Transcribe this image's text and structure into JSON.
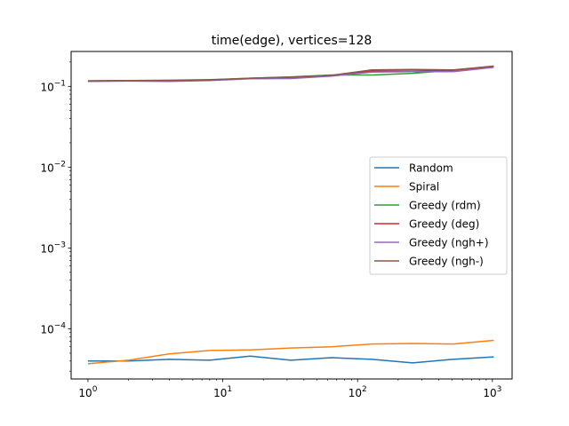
{
  "chart_data": {
    "type": "line",
    "title": "time(edge), vertices=128",
    "xlabel": "",
    "ylabel": "",
    "xscale": "log",
    "yscale": "log",
    "xlim": [
      0.75,
      1400
    ],
    "ylim": [
      2.4e-05,
      0.27
    ],
    "grid": false,
    "legend_position": "center-right",
    "x": [
      1,
      2,
      4,
      8,
      16,
      32,
      64,
      128,
      256,
      512,
      1024
    ],
    "x_ticks": [
      {
        "value": 1,
        "base": "10",
        "exp": "0"
      },
      {
        "value": 10,
        "base": "10",
        "exp": "1"
      },
      {
        "value": 100,
        "base": "10",
        "exp": "2"
      },
      {
        "value": 1000,
        "base": "10",
        "exp": "3"
      }
    ],
    "y_ticks": [
      {
        "value": 0.0001,
        "base": "10",
        "exp": "−4"
      },
      {
        "value": 0.001,
        "base": "10",
        "exp": "−3"
      },
      {
        "value": 0.01,
        "base": "10",
        "exp": "−2"
      },
      {
        "value": 0.1,
        "base": "10",
        "exp": "−1"
      }
    ],
    "series": [
      {
        "name": "Random",
        "color": "#1f77b4",
        "values": [
          4e-05,
          4e-05,
          4.2e-05,
          4.1e-05,
          4.6e-05,
          4.1e-05,
          4.4e-05,
          4.2e-05,
          3.8e-05,
          4.2e-05,
          4.5e-05
        ]
      },
      {
        "name": "Spiral",
        "color": "#ff7f0e",
        "values": [
          3.7e-05,
          4.1e-05,
          4.9e-05,
          5.4e-05,
          5.5e-05,
          5.8e-05,
          6e-05,
          6.5e-05,
          6.6e-05,
          6.5e-05,
          7.2e-05
        ]
      },
      {
        "name": "Greedy (rdm)",
        "color": "#2ca02c",
        "values": [
          0.117,
          0.118,
          0.119,
          0.121,
          0.126,
          0.131,
          0.138,
          0.138,
          0.145,
          0.158,
          0.178
        ]
      },
      {
        "name": "Greedy (deg)",
        "color": "#d62728",
        "values": [
          0.116,
          0.117,
          0.117,
          0.12,
          0.125,
          0.128,
          0.136,
          0.155,
          0.155,
          0.158,
          0.176
        ]
      },
      {
        "name": "Greedy (ngh+)",
        "color": "#9467bd",
        "values": [
          0.115,
          0.116,
          0.115,
          0.118,
          0.124,
          0.125,
          0.134,
          0.15,
          0.152,
          0.152,
          0.172
        ]
      },
      {
        "name": "Greedy (ngh-)",
        "color": "#8c564b",
        "values": [
          0.117,
          0.118,
          0.118,
          0.12,
          0.126,
          0.13,
          0.137,
          0.16,
          0.162,
          0.16,
          0.178
        ]
      }
    ]
  }
}
